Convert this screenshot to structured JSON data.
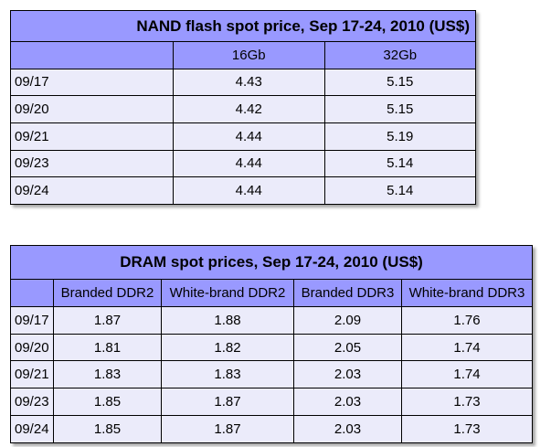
{
  "chart_data": [
    {
      "type": "table",
      "title": "NAND flash spot price, Sep 17-24, 2010 (US$)",
      "columns": [
        "",
        "16Gb",
        "32Gb"
      ],
      "rows": [
        {
          "date": "09/17",
          "values": [
            "4.43",
            "5.15"
          ]
        },
        {
          "date": "09/20",
          "values": [
            "4.42",
            "5.15"
          ]
        },
        {
          "date": "09/21",
          "values": [
            "4.44",
            "5.19"
          ]
        },
        {
          "date": "09/23",
          "values": [
            "4.44",
            "5.14"
          ]
        },
        {
          "date": "09/24",
          "values": [
            "4.44",
            "5.14"
          ]
        }
      ]
    },
    {
      "type": "table",
      "title": "DRAM spot prices, Sep 17-24, 2010 (US$)",
      "columns": [
        "",
        "Branded DDR2",
        "White-brand DDR2",
        "Branded DDR3",
        "White-brand DDR3"
      ],
      "rows": [
        {
          "date": "09/17",
          "values": [
            "1.87",
            "1.88",
            "2.09",
            "1.76"
          ]
        },
        {
          "date": "09/20",
          "values": [
            "1.81",
            "1.82",
            "2.05",
            "1.74"
          ]
        },
        {
          "date": "09/21",
          "values": [
            "1.83",
            "1.83",
            "2.03",
            "1.74"
          ]
        },
        {
          "date": "09/23",
          "values": [
            "1.85",
            "1.87",
            "2.03",
            "1.73"
          ]
        },
        {
          "date": "09/24",
          "values": [
            "1.85",
            "1.87",
            "2.03",
            "1.73"
          ]
        }
      ]
    }
  ],
  "colors": {
    "header": "#9999ff",
    "cell": "#ebebfa",
    "border": "#000000"
  }
}
